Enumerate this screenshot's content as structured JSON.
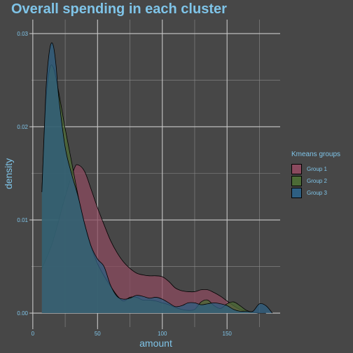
{
  "chart_data": {
    "type": "area",
    "title": "Overall spending in each cluster",
    "xlabel": "amount",
    "ylabel": "density",
    "xlim": [
      -1,
      191
    ],
    "ylim": [
      -0.0015,
      0.0315
    ],
    "x_ticks": [
      0,
      50,
      100,
      150
    ],
    "x_tick_labels": [
      "0",
      "50",
      "100",
      "150"
    ],
    "y_ticks": [
      0,
      0.01,
      0.02,
      0.03
    ],
    "y_tick_labels": [
      "0.00",
      "0.01",
      "0.02",
      "0.03"
    ],
    "grid": true,
    "legend": {
      "title": "Kmeans groups",
      "placement": "right"
    },
    "series": [
      {
        "name": "Group 1",
        "color": "#8a4a5e",
        "x": [
          7,
          15,
          25,
          32,
          35,
          40,
          45,
          50,
          55,
          60,
          65,
          70,
          75,
          80,
          85,
          90,
          95,
          100,
          105,
          110,
          115,
          120,
          125,
          130,
          135,
          140,
          145,
          150,
          155,
          160,
          165,
          170,
          175,
          180
        ],
        "values": [
          0.0048,
          0.0075,
          0.0125,
          0.0155,
          0.0159,
          0.0152,
          0.0133,
          0.0113,
          0.0095,
          0.0078,
          0.0065,
          0.0055,
          0.0048,
          0.0043,
          0.0041,
          0.004,
          0.004,
          0.0039,
          0.0034,
          0.0027,
          0.0024,
          0.0023,
          0.0023,
          0.0025,
          0.0025,
          0.0022,
          0.0018,
          0.0013,
          0.0008,
          0.0004,
          0.0002,
          0.0001,
          0.0,
          0.0
        ]
      },
      {
        "name": "Group 2",
        "color": "#4c6b36",
        "x": [
          7,
          10,
          13,
          16,
          20,
          25,
          30,
          35,
          40,
          45,
          50,
          55,
          60,
          65,
          70,
          75,
          80,
          85,
          90,
          95,
          100,
          105,
          110,
          115,
          120,
          125,
          130,
          135,
          140,
          145,
          150,
          155,
          160,
          165,
          170,
          175,
          180
        ],
        "values": [
          0.013,
          0.0225,
          0.0262,
          0.0263,
          0.0237,
          0.0198,
          0.0162,
          0.0126,
          0.0095,
          0.0071,
          0.0053,
          0.004,
          0.0029,
          0.0019,
          0.0013,
          0.0017,
          0.0017,
          0.0014,
          0.0014,
          0.0013,
          0.0011,
          0.0009,
          0.0006,
          0.0004,
          0.0003,
          0.0004,
          0.0012,
          0.0014,
          0.0008,
          0.0005,
          0.001,
          0.0012,
          0.0008,
          0.0003,
          0.0001,
          0.0,
          0.0
        ]
      },
      {
        "name": "Group 3",
        "color": "#2e5f82",
        "x": [
          7,
          10,
          12,
          14,
          16,
          18,
          20,
          25,
          30,
          35,
          40,
          45,
          50,
          55,
          60,
          65,
          70,
          75,
          80,
          85,
          90,
          95,
          100,
          105,
          110,
          115,
          120,
          125,
          130,
          135,
          140,
          145,
          150,
          155,
          160,
          165,
          170,
          175,
          180,
          185
        ],
        "values": [
          0.013,
          0.0235,
          0.0272,
          0.0289,
          0.0286,
          0.0265,
          0.0232,
          0.0178,
          0.0149,
          0.0125,
          0.0096,
          0.0072,
          0.0058,
          0.005,
          0.003,
          0.0018,
          0.0015,
          0.0016,
          0.0019,
          0.0018,
          0.0016,
          0.0017,
          0.0015,
          0.0011,
          0.0007,
          0.0008,
          0.0011,
          0.0011,
          0.0009,
          0.001,
          0.0011,
          0.001,
          0.0008,
          0.0004,
          0.0002,
          0.0002,
          0.0002,
          0.001,
          0.0008,
          0.0
        ]
      }
    ]
  }
}
